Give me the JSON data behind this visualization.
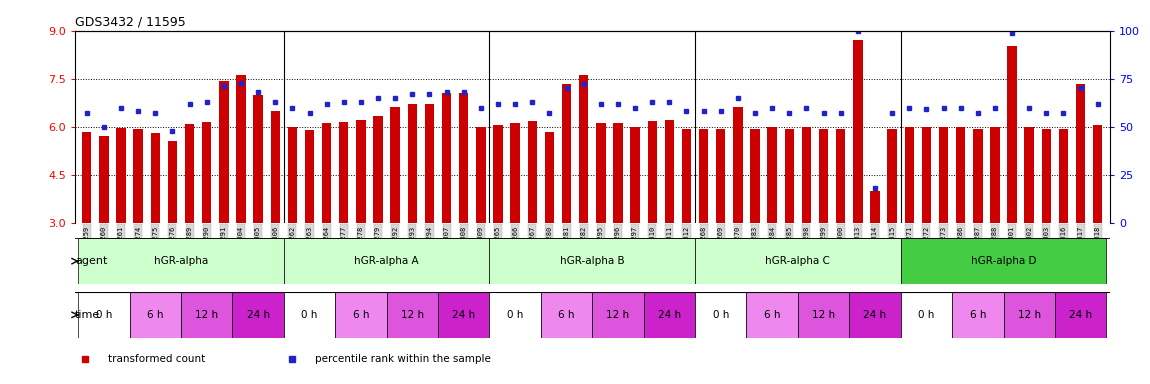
{
  "title": "GDS3432 / 11595",
  "ylim_left": [
    3,
    9
  ],
  "ylim_right": [
    0,
    100
  ],
  "yticks_left": [
    3,
    4.5,
    6,
    7.5,
    9
  ],
  "yticks_right": [
    0,
    25,
    50,
    75,
    100
  ],
  "bar_color": "#cc0000",
  "dot_color": "#2222cc",
  "bar_baseline": 3,
  "samples": [
    "GSM154259",
    "GSM154260",
    "GSM154261",
    "GSM154274",
    "GSM154275",
    "GSM154276",
    "GSM154289",
    "GSM154290",
    "GSM154291",
    "GSM154304",
    "GSM154305",
    "GSM154306",
    "GSM154262",
    "GSM154263",
    "GSM154264",
    "GSM154277",
    "GSM154278",
    "GSM154279",
    "GSM154292",
    "GSM154293",
    "GSM154294",
    "GSM154307",
    "GSM154308",
    "GSM154309",
    "GSM154265",
    "GSM154266",
    "GSM154267",
    "GSM154280",
    "GSM154281",
    "GSM154282",
    "GSM154295",
    "GSM154296",
    "GSM154297",
    "GSM154310",
    "GSM154311",
    "GSM154312",
    "GSM154268",
    "GSM154269",
    "GSM154270",
    "GSM154283",
    "GSM154284",
    "GSM154285",
    "GSM154298",
    "GSM154299",
    "GSM154300",
    "GSM154313",
    "GSM154314",
    "GSM154315",
    "GSM154271",
    "GSM154272",
    "GSM154273",
    "GSM154286",
    "GSM154287",
    "GSM154288",
    "GSM154301",
    "GSM154302",
    "GSM154303",
    "GSM154316",
    "GSM154317",
    "GSM154318"
  ],
  "bar_values": [
    5.82,
    5.72,
    5.96,
    5.94,
    5.8,
    5.55,
    6.1,
    6.15,
    7.42,
    7.62,
    7.0,
    6.5,
    6.0,
    5.9,
    6.12,
    6.15,
    6.22,
    6.32,
    6.62,
    6.72,
    6.72,
    7.05,
    7.05,
    6.0,
    6.05,
    6.12,
    6.18,
    5.82,
    7.32,
    7.62,
    6.12,
    6.12,
    6.0,
    6.18,
    6.22,
    5.92,
    5.92,
    5.92,
    6.62,
    5.92,
    6.0,
    5.92,
    6.0,
    5.92,
    5.92,
    8.7,
    4.0,
    5.92,
    6.0,
    5.98,
    6.0,
    6.0,
    5.92,
    6.0,
    8.52,
    6.0,
    5.92,
    5.92,
    7.32,
    6.05
  ],
  "dot_values": [
    57,
    50,
    60,
    58,
    57,
    48,
    62,
    63,
    71,
    73,
    68,
    63,
    60,
    57,
    62,
    63,
    63,
    65,
    65,
    67,
    67,
    68,
    68,
    60,
    62,
    62,
    63,
    57,
    70,
    72,
    62,
    62,
    60,
    63,
    63,
    58,
    58,
    58,
    65,
    57,
    60,
    57,
    60,
    57,
    57,
    100,
    18,
    57,
    60,
    59,
    60,
    60,
    57,
    60,
    99,
    60,
    57,
    57,
    70,
    62
  ],
  "groups": [
    {
      "label": "hGR-alpha",
      "start": 0,
      "end": 11,
      "color": "#ccffcc"
    },
    {
      "label": "hGR-alpha A",
      "start": 12,
      "end": 23,
      "color": "#ccffcc"
    },
    {
      "label": "hGR-alpha B",
      "start": 24,
      "end": 35,
      "color": "#ccffcc"
    },
    {
      "label": "hGR-alpha C",
      "start": 36,
      "end": 47,
      "color": "#ccffcc"
    },
    {
      "label": "hGR-alpha D",
      "start": 48,
      "end": 59,
      "color": "#44cc44"
    }
  ],
  "time_blocks": [
    {
      "label": "0 h",
      "color": "#ffffff"
    },
    {
      "label": "6 h",
      "color": "#ee88ee"
    },
    {
      "label": "12 h",
      "color": "#dd55dd"
    },
    {
      "label": "24 h",
      "color": "#cc22cc"
    }
  ],
  "legend_items": [
    {
      "label": "transformed count",
      "color": "#cc0000"
    },
    {
      "label": "percentile rank within the sample",
      "color": "#2222cc"
    }
  ],
  "xtick_bg": "#d8d8d8"
}
